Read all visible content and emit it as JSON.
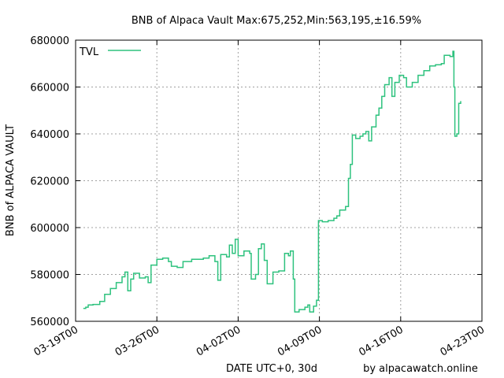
{
  "chart_data": {
    "type": "line",
    "title": "BNB of Alpaca Vault Max:675,252,Min:563,195,±16.59%",
    "xlabel": "DATE UTC+0, 30d",
    "ylabel": "BNB of ALPACA VAULT",
    "credit": "by alpacawatch.online",
    "legend_position": "top-left",
    "grid": true,
    "ylim": [
      560000,
      680000
    ],
    "yticks": [
      560000,
      580000,
      600000,
      620000,
      640000,
      660000,
      680000
    ],
    "ytick_labels": [
      "560000",
      "580000",
      "600000",
      "620000",
      "640000",
      "660000",
      "680000"
    ],
    "xlim": [
      "2022-03-19",
      "2022-04-23"
    ],
    "xticks": [
      "2022-03-19",
      "2022-03-26",
      "2022-04-02",
      "2022-04-09",
      "2022-04-16",
      "2022-04-23"
    ],
    "xtick_labels": [
      "03-19T00",
      "03-26T00",
      "04-02T00",
      "04-09T00",
      "04-16T00",
      "04-23T00"
    ],
    "series": [
      {
        "name": "TVL",
        "color": "#2ec27e",
        "points": [
          [
            "2022-03-19T16:00",
            565500
          ],
          [
            "2022-03-19T21:00",
            566000
          ],
          [
            "2022-03-20T02:00",
            567000
          ],
          [
            "2022-03-20T12:00",
            567200
          ],
          [
            "2022-03-21T02:00",
            568500
          ],
          [
            "2022-03-21T12:00",
            571500
          ],
          [
            "2022-03-22T00:00",
            574000
          ],
          [
            "2022-03-22T12:00",
            576500
          ],
          [
            "2022-03-23T00:00",
            579000
          ],
          [
            "2022-03-23T06:00",
            581000
          ],
          [
            "2022-03-23T12:00",
            573000
          ],
          [
            "2022-03-23T18:00",
            578000
          ],
          [
            "2022-03-24T00:00",
            580500
          ],
          [
            "2022-03-24T12:00",
            578500
          ],
          [
            "2022-03-25T00:00",
            579000
          ],
          [
            "2022-03-25T06:00",
            576500
          ],
          [
            "2022-03-25T12:00",
            584000
          ],
          [
            "2022-03-26T00:00",
            586500
          ],
          [
            "2022-03-26T12:00",
            587000
          ],
          [
            "2022-03-27T00:00",
            585500
          ],
          [
            "2022-03-27T06:00",
            583500
          ],
          [
            "2022-03-27T18:00",
            583000
          ],
          [
            "2022-03-28T06:00",
            585500
          ],
          [
            "2022-03-29T00:00",
            586500
          ],
          [
            "2022-03-30T00:00",
            587000
          ],
          [
            "2022-03-30T12:00",
            588000
          ],
          [
            "2022-03-31T00:00",
            585500
          ],
          [
            "2022-03-31T06:00",
            577500
          ],
          [
            "2022-03-31T12:00",
            588500
          ],
          [
            "2022-04-01T00:00",
            587500
          ],
          [
            "2022-04-01T06:00",
            592500
          ],
          [
            "2022-04-01T12:00",
            589000
          ],
          [
            "2022-04-01T18:00",
            595000
          ],
          [
            "2022-04-02T00:00",
            588000
          ],
          [
            "2022-04-02T12:00",
            590000
          ],
          [
            "2022-04-03T00:00",
            589000
          ],
          [
            "2022-04-03T03:00",
            578000
          ],
          [
            "2022-04-03T12:00",
            580000
          ],
          [
            "2022-04-03T18:00",
            591000
          ],
          [
            "2022-04-04T00:00",
            593000
          ],
          [
            "2022-04-04T06:00",
            586000
          ],
          [
            "2022-04-04T12:00",
            576000
          ],
          [
            "2022-04-04T18:00",
            576000
          ],
          [
            "2022-04-05T00:00",
            581000
          ],
          [
            "2022-04-05T12:00",
            581500
          ],
          [
            "2022-04-05T20:00",
            581500
          ],
          [
            "2022-04-06T00:00",
            589000
          ],
          [
            "2022-04-06T08:00",
            588000
          ],
          [
            "2022-04-06T12:00",
            590000
          ],
          [
            "2022-04-06T18:00",
            578000
          ],
          [
            "2022-04-06T21:00",
            564000
          ],
          [
            "2022-04-07T06:00",
            565000
          ],
          [
            "2022-04-07T18:00",
            566000
          ],
          [
            "2022-04-08T00:00",
            567000
          ],
          [
            "2022-04-08T04:00",
            564000
          ],
          [
            "2022-04-08T12:00",
            566500
          ],
          [
            "2022-04-08T18:00",
            569000
          ],
          [
            "2022-04-08T22:00",
            603000
          ],
          [
            "2022-04-09T06:00",
            602500
          ],
          [
            "2022-04-09T18:00",
            603000
          ],
          [
            "2022-04-10T06:00",
            604000
          ],
          [
            "2022-04-10T12:00",
            605000
          ],
          [
            "2022-04-10T18:00",
            607500
          ],
          [
            "2022-04-11T06:00",
            609000
          ],
          [
            "2022-04-11T12:00",
            621000
          ],
          [
            "2022-04-11T16:00",
            627000
          ],
          [
            "2022-04-11T20:00",
            639500
          ],
          [
            "2022-04-12T03:00",
            638000
          ],
          [
            "2022-04-12T12:00",
            639000
          ],
          [
            "2022-04-12T18:00",
            640000
          ],
          [
            "2022-04-13T00:00",
            641000
          ],
          [
            "2022-04-13T06:00",
            637000
          ],
          [
            "2022-04-13T12:00",
            643000
          ],
          [
            "2022-04-13T21:00",
            648000
          ],
          [
            "2022-04-14T03:00",
            651000
          ],
          [
            "2022-04-14T09:00",
            656000
          ],
          [
            "2022-04-14T15:00",
            661000
          ],
          [
            "2022-04-15T00:00",
            664000
          ],
          [
            "2022-04-15T06:00",
            656000
          ],
          [
            "2022-04-15T12:00",
            662000
          ],
          [
            "2022-04-15T21:00",
            665000
          ],
          [
            "2022-04-16T06:00",
            664000
          ],
          [
            "2022-04-16T12:00",
            660000
          ],
          [
            "2022-04-17T00:00",
            662000
          ],
          [
            "2022-04-17T12:00",
            665000
          ],
          [
            "2022-04-18T00:00",
            667000
          ],
          [
            "2022-04-18T12:00",
            669000
          ],
          [
            "2022-04-19T00:00",
            669500
          ],
          [
            "2022-04-19T12:00",
            670000
          ],
          [
            "2022-04-19T18:00",
            673500
          ],
          [
            "2022-04-20T06:00",
            673000
          ],
          [
            "2022-04-20T12:00",
            675252
          ],
          [
            "2022-04-20T14:00",
            660000
          ],
          [
            "2022-04-20T16:00",
            639000
          ],
          [
            "2022-04-20T20:00",
            640000
          ],
          [
            "2022-04-21T00:00",
            653000
          ],
          [
            "2022-04-21T04:00",
            654000
          ]
        ]
      }
    ]
  }
}
